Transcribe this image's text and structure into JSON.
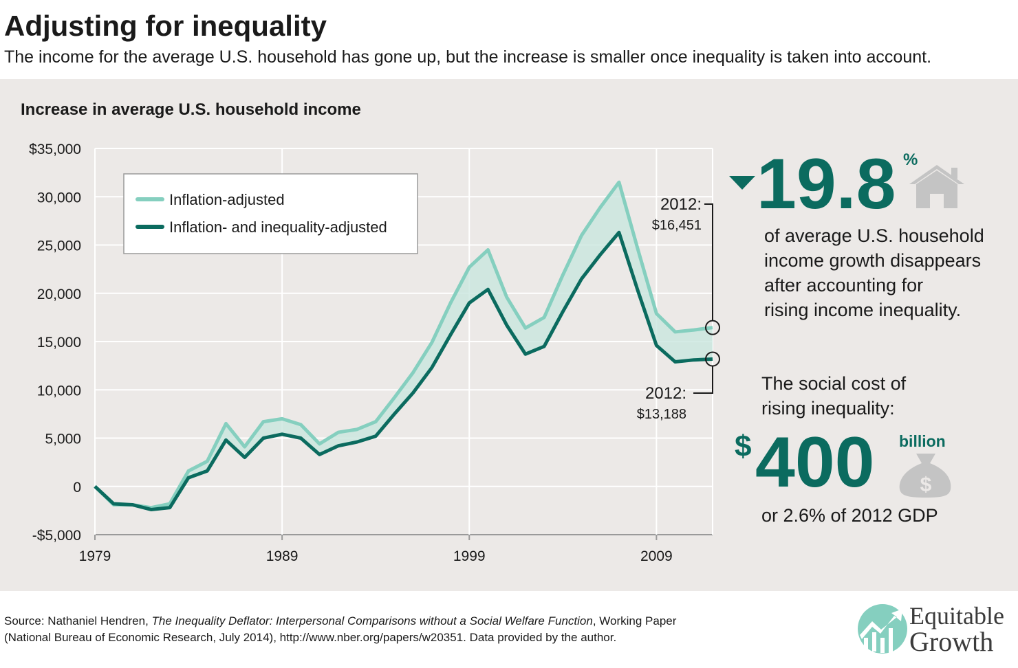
{
  "header": {
    "title": "Adjusting for inequality",
    "subtitle": "The income for the average U.S. household has gone up, but the increase is smaller once inequality is taken into account."
  },
  "chart_data": {
    "type": "line",
    "title": "Increase in average U.S. household income",
    "x": [
      1979,
      1980,
      1981,
      1982,
      1983,
      1984,
      1985,
      1986,
      1987,
      1988,
      1989,
      1990,
      1991,
      1992,
      1993,
      1994,
      1995,
      1996,
      1997,
      1998,
      1999,
      2000,
      2001,
      2002,
      2003,
      2004,
      2005,
      2006,
      2007,
      2008,
      2009,
      2010,
      2011,
      2012
    ],
    "series": [
      {
        "name": "Inflation-adjusted",
        "color": "#85cfbf",
        "values": [
          0,
          -1900,
          -1900,
          -2200,
          -1800,
          1600,
          2600,
          6500,
          4100,
          6700,
          7000,
          6400,
          4400,
          5600,
          5900,
          6700,
          9200,
          11800,
          14900,
          19000,
          22700,
          24500,
          19600,
          16400,
          17500,
          21900,
          26000,
          28900,
          31500,
          24600,
          17900,
          16000,
          16200,
          16451
        ]
      },
      {
        "name": "Inflation- and inequality-adjusted",
        "color": "#0b6b5f",
        "values": [
          0,
          -1800,
          -1900,
          -2400,
          -2200,
          900,
          1600,
          4800,
          3000,
          5000,
          5400,
          5000,
          3300,
          4200,
          4600,
          5200,
          7500,
          9700,
          12300,
          15700,
          19000,
          20400,
          16700,
          13700,
          14500,
          18100,
          21500,
          24000,
          26300,
          20300,
          14600,
          12900,
          13100,
          13188
        ]
      }
    ],
    "xlim": [
      1979,
      2012
    ],
    "xticks": [
      1979,
      1989,
      1999,
      2009
    ],
    "ylim": [
      -5000,
      35000
    ],
    "yticks": [
      {
        "value": -5000,
        "label": "-$5,000"
      },
      0,
      {
        "value": 5000,
        "label": "5,000"
      },
      {
        "value": 10000,
        "label": "10,000"
      },
      {
        "value": 15000,
        "label": "15,000"
      },
      {
        "value": 20000,
        "label": "20,000"
      },
      {
        "value": 25000,
        "label": "25,000"
      },
      {
        "value": 30000,
        "label": "30,000"
      },
      {
        "value": 35000,
        "label": "$35,000"
      }
    ],
    "grid": true,
    "legend": "upper left",
    "annotations": [
      {
        "year": "2012:",
        "amount": "$16,451"
      },
      {
        "year": "2012:",
        "amount": "$13,188"
      }
    ]
  },
  "callouts": {
    "share": {
      "number": "19.8",
      "unit": "%",
      "lines": [
        "of average U.S. household",
        "income growth disappears",
        "after accounting for",
        "rising income inequality."
      ]
    },
    "cost": {
      "lines": [
        "The social cost of",
        "rising inequality:"
      ],
      "currency": "$",
      "number": "400",
      "unit": "billion",
      "note": "or 2.6% of 2012 GDP"
    }
  },
  "source": {
    "prefix": "Source: Nathaniel Hendren, ",
    "work": "The Inequality Deflator: Interpersonal Comparisons without a Social Welfare Function",
    "suffix": ", Working Paper",
    "line2": "(National Bureau of Economic Research, July 2014), http://www.nber.org/papers/w20351. Data provided by the author."
  },
  "logo": {
    "lines": [
      "Equitable",
      "Growth"
    ]
  }
}
